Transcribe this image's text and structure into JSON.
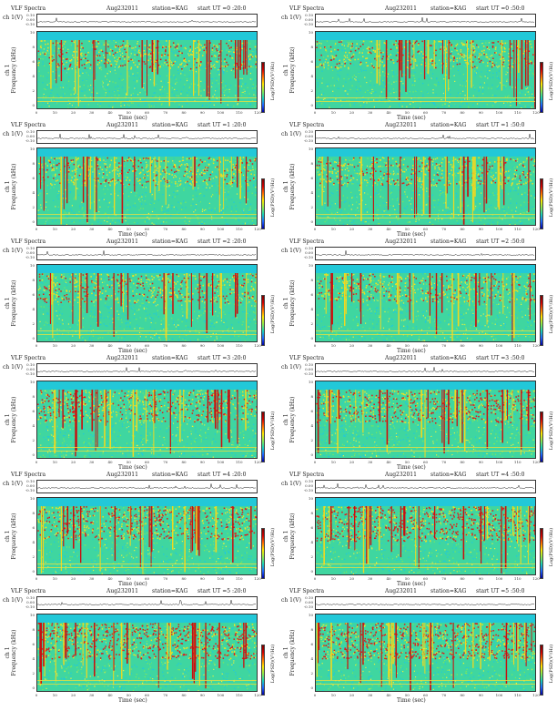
{
  "header": {
    "left": "VLF Spectra",
    "date": "Aug232011",
    "station": "station=KAG"
  },
  "panels": [
    {
      "start": "start  UT =0 :20:0",
      "intensity": 0.55
    },
    {
      "start": "start  UT =0 :50:0",
      "intensity": 0.5
    },
    {
      "start": "start  UT =1 :20:0",
      "intensity": 0.55
    },
    {
      "start": "start  UT =1 :50:0",
      "intensity": 0.55
    },
    {
      "start": "start  UT =2 :20:0",
      "intensity": 0.6
    },
    {
      "start": "start  UT =2 :50:0",
      "intensity": 0.55
    },
    {
      "start": "start  UT =3 :20:0",
      "intensity": 0.75
    },
    {
      "start": "start  UT =3 :50:0",
      "intensity": 0.8
    },
    {
      "start": "start  UT =4 :20:0",
      "intensity": 0.8
    },
    {
      "start": "start  UT =4 :50:0",
      "intensity": 0.9
    },
    {
      "start": "start  UT =5 :20:0",
      "intensity": 0.95
    },
    {
      "start": "start  UT =5 :50:0",
      "intensity": 0.95
    }
  ],
  "axes": {
    "ts_label": "ch 1(V)",
    "ts_ticks": [
      "0.10",
      "0.00",
      "-0.10"
    ],
    "ylabel_line1": "ch 1",
    "ylabel_line2": "Frequency (kHz)",
    "yticks": [
      "10",
      "8",
      "6",
      "4",
      "2",
      "0"
    ],
    "xlabel": "Time  (sec)",
    "xticks": [
      "0",
      "10",
      "20",
      "30",
      "40",
      "50",
      "60",
      "70",
      "80",
      "90",
      "100",
      "110",
      "120"
    ],
    "colorbar_label": "Log(PSD)(V²/Hz)"
  },
  "chart_data": {
    "type": "heatmap",
    "title": "VLF Spectra  Aug232011  station=KAG",
    "xlabel": "Time  (sec)",
    "ylabel": "Frequency (kHz)",
    "xlim": [
      0,
      120
    ],
    "ylim": [
      0,
      10
    ],
    "colorbar": "Log(PSD)(V²/Hz)",
    "panels_start_UT": [
      "0:20:0",
      "0:50:0",
      "1:20:0",
      "1:50:0",
      "2:20:0",
      "2:50:0",
      "3:20:0",
      "3:50:0",
      "4:20:0",
      "4:50:0",
      "5:20:0",
      "5:50:0"
    ]
  }
}
